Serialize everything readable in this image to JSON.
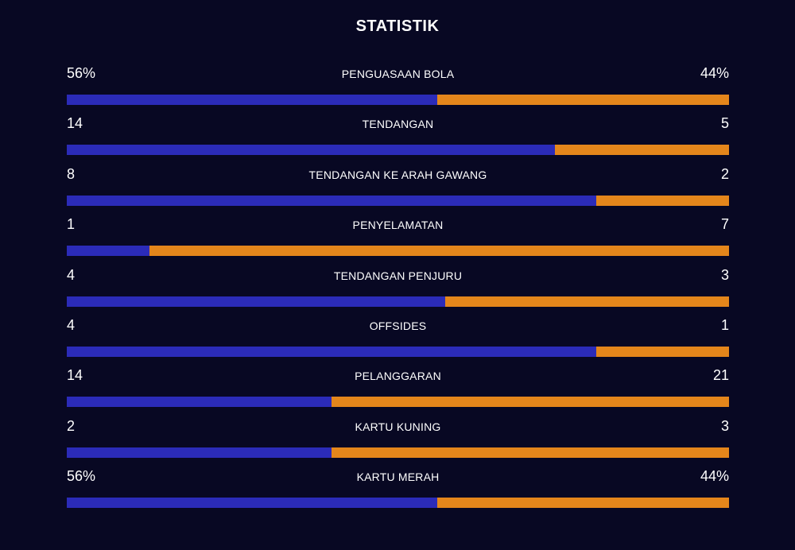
{
  "title": "STATISTIK",
  "colors": {
    "home": "#2b2bb8",
    "away": "#e4861b",
    "background": "#080823"
  },
  "stats": [
    {
      "label": "PENGUASAAN BOLA",
      "home_display": "56%",
      "away_display": "44%",
      "home_share": 0.56
    },
    {
      "label": "TENDANGAN",
      "home_display": "14",
      "away_display": "5",
      "home_share": 0.737
    },
    {
      "label": "TENDANGAN KE ARAH GAWANG",
      "home_display": "8",
      "away_display": "2",
      "home_share": 0.8
    },
    {
      "label": "PENYELAMATAN",
      "home_display": "1",
      "away_display": "7",
      "home_share": 0.125
    },
    {
      "label": "TENDANGAN PENJURU",
      "home_display": "4",
      "away_display": "3",
      "home_share": 0.571
    },
    {
      "label": "OFFSIDES",
      "home_display": "4",
      "away_display": "1",
      "home_share": 0.8
    },
    {
      "label": "PELANGGARAN",
      "home_display": "14",
      "away_display": "21",
      "home_share": 0.4
    },
    {
      "label": "KARTU KUNING",
      "home_display": "2",
      "away_display": "3",
      "home_share": 0.4
    },
    {
      "label": "KARTU MERAH",
      "home_display": "56%",
      "away_display": "44%",
      "home_share": 0.56
    }
  ]
}
